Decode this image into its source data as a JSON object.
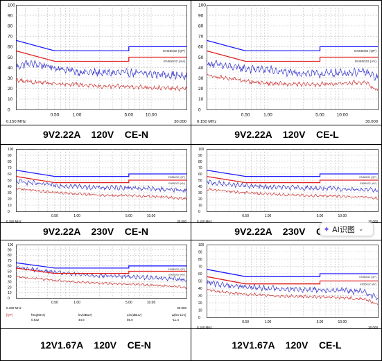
{
  "chart_data": [
    {
      "type": "line",
      "caption": "9V2.22A    120V    CE-N",
      "xscale": "log",
      "xlim": [
        0.15,
        30
      ],
      "ylim": [
        0,
        100
      ],
      "y_ticks": [
        "100",
        "90",
        "80",
        "70",
        "60",
        "50",
        "40",
        "30",
        "20",
        "10",
        "0"
      ],
      "x_tick_labels": [
        {
          "x": 0.5,
          "label": "0.50"
        },
        {
          "x": 1,
          "label": "1.00"
        },
        {
          "x": 5,
          "label": "5.00"
        },
        {
          "x": 10,
          "label": "10.00"
        }
      ],
      "x_start_label": "0.150 MHz",
      "x_end_label": "30.000",
      "grid": true,
      "limit_lines": [
        {
          "name": "EN55032 (QP)",
          "color": "#1a1aff",
          "points": [
            [
              0.15,
              66
            ],
            [
              0.5,
              56
            ],
            [
              5,
              56
            ],
            [
              5,
              60
            ],
            [
              30,
              60
            ]
          ]
        },
        {
          "name": "EN55032 (AV)",
          "color": "#e02020",
          "points": [
            [
              0.15,
              56
            ],
            [
              0.5,
              46
            ],
            [
              5,
              46
            ],
            [
              5,
              50
            ],
            [
              30,
              50
            ]
          ]
        }
      ],
      "series": [
        {
          "color": "#3333cc",
          "x": [
            0.15,
            0.2,
            0.3,
            0.5,
            1,
            2,
            5,
            10,
            20,
            30
          ],
          "values": [
            40,
            44,
            43,
            40,
            36,
            35,
            35,
            34,
            33,
            31
          ]
        },
        {
          "color": "#cc3333",
          "x": [
            0.15,
            0.2,
            0.3,
            0.5,
            1,
            2,
            5,
            10,
            20,
            30
          ],
          "values": [
            28,
            27,
            26,
            25,
            24,
            22,
            22,
            21,
            20,
            20
          ]
        }
      ]
    },
    {
      "type": "line",
      "caption": "9V2.22A    120V    CE-L",
      "xscale": "log",
      "xlim": [
        0.15,
        30
      ],
      "ylim": [
        0,
        100
      ],
      "y_ticks": [
        "100",
        "90",
        "80",
        "70",
        "60",
        "50",
        "40",
        "30",
        "20",
        "10",
        "0"
      ],
      "x_tick_labels": [
        {
          "x": 0.5,
          "label": "0.50"
        },
        {
          "x": 1,
          "label": "1.00"
        },
        {
          "x": 5,
          "label": "5.00"
        },
        {
          "x": 10,
          "label": "10.00"
        }
      ],
      "x_start_label": "0.150 MHz",
      "x_end_label": "30.000",
      "grid": true,
      "limit_lines": [
        {
          "name": "EN55032 (QP)",
          "color": "#1a1aff",
          "points": [
            [
              0.15,
              66
            ],
            [
              0.5,
              56
            ],
            [
              5,
              56
            ],
            [
              5,
              60
            ],
            [
              30,
              60
            ]
          ]
        },
        {
          "name": "EN55032 (AV)",
          "color": "#e02020",
          "points": [
            [
              0.15,
              56
            ],
            [
              0.5,
              46
            ],
            [
              5,
              46
            ],
            [
              5,
              50
            ],
            [
              30,
              50
            ]
          ]
        }
      ],
      "series": [
        {
          "color": "#3333cc",
          "x": [
            0.15,
            0.2,
            0.3,
            0.5,
            1,
            2,
            5,
            10,
            20,
            30
          ],
          "values": [
            44,
            43,
            41,
            39,
            38,
            35,
            34,
            35,
            36,
            30
          ]
        },
        {
          "color": "#cc3333",
          "x": [
            0.15,
            0.2,
            0.3,
            0.5,
            1,
            2,
            5,
            10,
            20,
            30
          ],
          "values": [
            33,
            31,
            30,
            27,
            25,
            24,
            24,
            25,
            26,
            18
          ]
        }
      ]
    },
    {
      "type": "line",
      "caption": "9V2.22A    230V    CE-N",
      "xscale": "log",
      "xlim": [
        0.15,
        30
      ],
      "ylim": [
        0,
        100
      ],
      "y_ticks": [
        "100",
        "90",
        "80",
        "70",
        "60",
        "50",
        "40",
        "30",
        "20",
        "10",
        "0"
      ],
      "x_tick_labels": [
        {
          "x": 0.5,
          "label": "0.50"
        },
        {
          "x": 1,
          "label": "1.00"
        },
        {
          "x": 5,
          "label": "5.00"
        },
        {
          "x": 10,
          "label": "10.00"
        }
      ],
      "x_start_label": "0.150 MHz",
      "x_end_label": "30.000",
      "grid": true,
      "limit_lines": [
        {
          "name": "EN55032 (QP)",
          "color": "#1a1aff",
          "points": [
            [
              0.15,
              66
            ],
            [
              0.5,
              56
            ],
            [
              5,
              56
            ],
            [
              5,
              60
            ],
            [
              30,
              60
            ]
          ]
        },
        {
          "name": "EN55032 (AV)",
          "color": "#e02020",
          "points": [
            [
              0.15,
              56
            ],
            [
              0.5,
              46
            ],
            [
              5,
              46
            ],
            [
              5,
              50
            ],
            [
              30,
              50
            ]
          ]
        }
      ],
      "series": [
        {
          "color": "#3333cc",
          "x": [
            0.15,
            0.2,
            0.3,
            0.5,
            1,
            2,
            5,
            10,
            20,
            30
          ],
          "values": [
            48,
            47,
            44,
            42,
            40,
            38,
            38,
            36,
            35,
            33
          ]
        },
        {
          "color": "#cc3333",
          "x": [
            0.15,
            0.2,
            0.3,
            0.5,
            1,
            2,
            5,
            10,
            20,
            30
          ],
          "values": [
            37,
            35,
            33,
            30,
            28,
            26,
            25,
            24,
            22,
            20
          ]
        }
      ]
    },
    {
      "type": "line",
      "caption": "9V2.22A    230V    CE-L",
      "xscale": "log",
      "xlim": [
        0.15,
        30
      ],
      "ylim": [
        0,
        100
      ],
      "y_ticks": [
        "100",
        "90",
        "80",
        "70",
        "60",
        "50",
        "40",
        "30",
        "20",
        "10",
        "0"
      ],
      "x_tick_labels": [
        {
          "x": 0.5,
          "label": "0.50"
        },
        {
          "x": 1,
          "label": "1.00"
        },
        {
          "x": 5,
          "label": "5.00"
        },
        {
          "x": 10,
          "label": "10.00"
        }
      ],
      "x_start_label": "0.150 MHz",
      "x_end_label": "30.000",
      "grid": true,
      "limit_lines": [
        {
          "name": "EN55032 (QP)",
          "color": "#1a1aff",
          "points": [
            [
              0.15,
              66
            ],
            [
              0.5,
              56
            ],
            [
              5,
              56
            ],
            [
              5,
              60
            ],
            [
              30,
              60
            ]
          ]
        },
        {
          "name": "EN55032 (AV)",
          "color": "#e02020",
          "points": [
            [
              0.15,
              56
            ],
            [
              0.5,
              46
            ],
            [
              5,
              46
            ],
            [
              5,
              50
            ],
            [
              30,
              50
            ]
          ]
        }
      ],
      "series": [
        {
          "color": "#3333cc",
          "x": [
            0.15,
            0.2,
            0.3,
            0.5,
            1,
            2,
            5,
            10,
            20,
            30
          ],
          "values": [
            47,
            45,
            43,
            41,
            39,
            38,
            37,
            36,
            35,
            33
          ]
        },
        {
          "color": "#cc3333",
          "x": [
            0.15,
            0.2,
            0.3,
            0.5,
            1,
            2,
            5,
            10,
            20,
            30
          ],
          "values": [
            36,
            34,
            32,
            30,
            28,
            26,
            25,
            24,
            23,
            21
          ]
        }
      ]
    },
    {
      "type": "line",
      "caption": "12V1.67A    120V    CE-N",
      "xscale": "log",
      "xlim": [
        0.15,
        30
      ],
      "ylim": [
        0,
        100
      ],
      "y_ticks": [
        "100",
        "90",
        "80",
        "70",
        "60",
        "50",
        "40",
        "30",
        "20",
        "10",
        "0"
      ],
      "x_tick_labels": [
        {
          "x": 0.5,
          "label": "0.50"
        },
        {
          "x": 1,
          "label": "1.00"
        },
        {
          "x": 5,
          "label": "5.00"
        },
        {
          "x": 10,
          "label": "10.00"
        }
      ],
      "x_start_label": "0.150 MHz",
      "x_end_label": "30.000",
      "grid": true,
      "limit_lines": [
        {
          "name": "EN55032 (QP)",
          "color": "#1a1aff",
          "points": [
            [
              0.15,
              66
            ],
            [
              0.5,
              56
            ],
            [
              5,
              56
            ],
            [
              5,
              60
            ],
            [
              30,
              60
            ]
          ]
        },
        {
          "name": "EN55032 (AV)",
          "color": "#e02020",
          "points": [
            [
              0.15,
              56
            ],
            [
              0.5,
              46
            ],
            [
              5,
              46
            ],
            [
              5,
              50
            ],
            [
              30,
              50
            ]
          ]
        }
      ],
      "series": [
        {
          "color": "#3333cc",
          "x": [
            0.15,
            0.2,
            0.3,
            0.5,
            1,
            2,
            5,
            10,
            20,
            30
          ],
          "values": [
            58,
            55,
            52,
            48,
            44,
            42,
            40,
            38,
            36,
            34
          ]
        },
        {
          "color": "#cc3333",
          "x": [
            0.15,
            0.2,
            0.3,
            0.5,
            1,
            2,
            5,
            10,
            20,
            30
          ],
          "values": [
            40,
            38,
            36,
            33,
            30,
            28,
            26,
            24,
            22,
            20
          ]
        }
      ],
      "readout": {
        "columns": [
          {
            "header": "[QP]",
            "value": ""
          },
          {
            "header": "freq(MHz)",
            "value": "0.632"
          },
          {
            "header": "lev(dBuV)",
            "value": "44.6"
          },
          {
            "header": "Lim(dBuV)",
            "value": "56.0"
          },
          {
            "header": "Δ(lev-Lim)",
            "value": "-11.4"
          }
        ]
      }
    },
    {
      "type": "line",
      "caption": "12V1.67A    120V    CE-L",
      "xscale": "log",
      "xlim": [
        0.15,
        30
      ],
      "ylim": [
        0,
        100
      ],
      "y_ticks": [
        "100",
        "90",
        "80",
        "70",
        "60",
        "50",
        "40",
        "30",
        "20",
        "10",
        "0"
      ],
      "x_tick_labels": [
        {
          "x": 0.5,
          "label": "0.50"
        },
        {
          "x": 1,
          "label": "1.00"
        },
        {
          "x": 5,
          "label": "5.00"
        },
        {
          "x": 10,
          "label": "10.00"
        }
      ],
      "x_start_label": "0.150 MHz",
      "x_end_label": "30.000",
      "grid": true,
      "limit_lines": [
        {
          "name": "EN55032 (QP)",
          "color": "#1a1aff",
          "points": [
            [
              0.15,
              66
            ],
            [
              0.5,
              56
            ],
            [
              5,
              56
            ],
            [
              5,
              60
            ],
            [
              30,
              60
            ]
          ]
        },
        {
          "name": "EN55032 (AV)",
          "color": "#e02020",
          "points": [
            [
              0.15,
              56
            ],
            [
              0.5,
              46
            ],
            [
              5,
              46
            ],
            [
              5,
              50
            ],
            [
              30,
              50
            ]
          ]
        }
      ],
      "series": [
        {
          "color": "#3333cc",
          "x": [
            0.15,
            0.2,
            0.3,
            0.5,
            1,
            2,
            5,
            10,
            20,
            30
          ],
          "values": [
            48,
            46,
            44,
            42,
            40,
            39,
            38,
            37,
            35,
            27
          ]
        },
        {
          "color": "#cc3333",
          "x": [
            0.15,
            0.2,
            0.3,
            0.5,
            1,
            2,
            5,
            10,
            20,
            30
          ],
          "values": [
            38,
            36,
            34,
            32,
            30,
            29,
            28,
            27,
            25,
            18
          ]
        }
      ]
    }
  ],
  "overlay": {
    "ai_badge_label": "AI识图"
  }
}
